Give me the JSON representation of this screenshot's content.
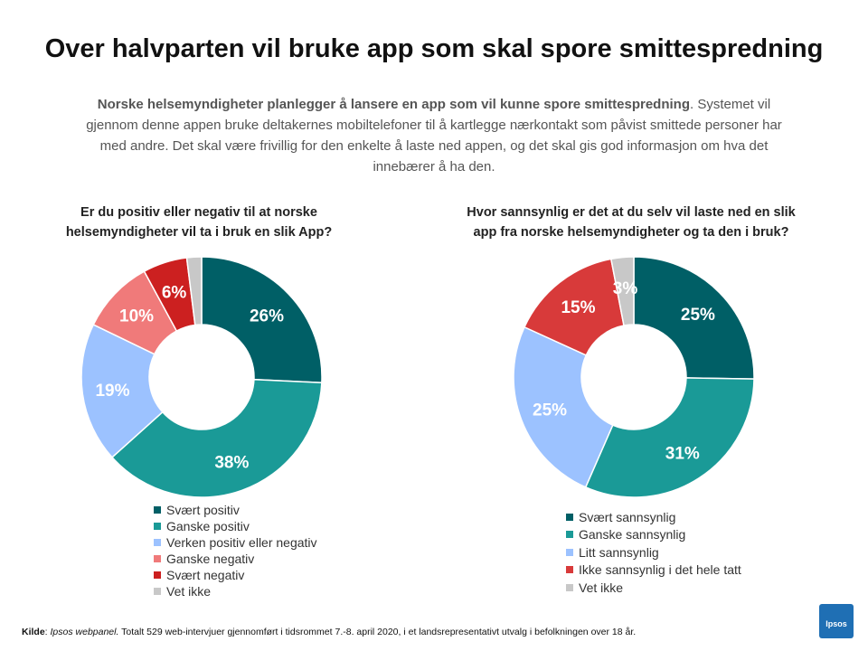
{
  "page": {
    "title": "Over halvparten vil bruke app som skal spore smittespredning",
    "intro_bold": "Norske helsemyndigheter planlegger å lansere en app som vil kunne spore smittespredning",
    "intro_rest": ". Systemet vil gjennom denne appen bruke deltakernes mobiltelefoner til å kartlegge nærkontakt som påvist smittede personer har med andre.  Det skal være frivillig for den enkelte å laste ned appen, og det skal gis god informasjon om hva det innebærer å ha den.",
    "footer_label": "Kilde",
    "footer_colon": ": ",
    "footer_source": "Ipsos webpanel.",
    "footer_text": " Totalt 529 web-intervjuer gjennomført i tidsrommet 7.-8. april 2020, i et landsrepresentativt utvalg i befolkningen over 18 år.",
    "logo_text": "Ipsos"
  },
  "chart_data": [
    {
      "type": "pie",
      "donut": true,
      "title": "Er du positiv eller negativ til at norske helsemyndigheter vil ta i bruk en slik App?",
      "categories": [
        "Svært positiv",
        "Ganske positiv",
        "Verken positiv eller negativ",
        "Ganske negativ",
        "Svært negativ",
        "Vet ikke"
      ],
      "values": [
        26,
        38,
        19,
        10,
        6,
        2
      ],
      "labels": [
        "26%",
        "38%",
        "19%",
        "10%",
        "6%",
        ""
      ],
      "colors": [
        "#005f66",
        "#1a9a97",
        "#9cc2ff",
        "#f07a7a",
        "#cc2020",
        "#c8c8c8"
      ],
      "label_colors": [
        "#ffffff",
        "#ffffff",
        "#ffffff",
        "#ffffff",
        "#ffffff",
        "#ffffff"
      ],
      "legend_position": "bottom"
    },
    {
      "type": "pie",
      "donut": true,
      "title": "Hvor sannsynlig er det at du selv vil laste ned en slik app fra norske helsemyndigheter og ta den i bruk?",
      "categories": [
        "Svært sannsynlig",
        "Ganske sannsynlig",
        "Litt sannsynlig",
        "Ikke sannsynlig i det hele tatt",
        "Vet ikke"
      ],
      "values": [
        25,
        31,
        25,
        15,
        3
      ],
      "labels": [
        "25%",
        "31%",
        "25%",
        "15%",
        "3%"
      ],
      "colors": [
        "#005f66",
        "#1a9a97",
        "#9cc2ff",
        "#d83a3a",
        "#c8c8c8"
      ],
      "label_colors": [
        "#ffffff",
        "#ffffff",
        "#ffffff",
        "#ffffff",
        "#ffffff"
      ],
      "legend_position": "bottom"
    }
  ]
}
